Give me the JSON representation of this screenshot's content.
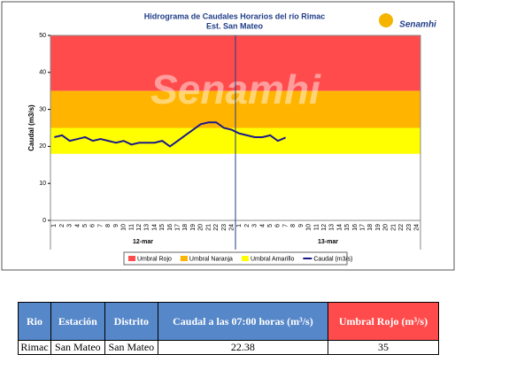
{
  "chart_data": {
    "type": "line",
    "title": "Hidrograma de Caudales Horarios del río Rimac",
    "subtitle": "Est. San Mateo",
    "logo": "Senamhi",
    "ylabel": "Caudal (m3/s)",
    "categories": [
      "1",
      "2",
      "3",
      "4",
      "5",
      "6",
      "7",
      "8",
      "9",
      "10",
      "11",
      "12",
      "13",
      "14",
      "15",
      "16",
      "17",
      "18",
      "19",
      "20",
      "21",
      "22",
      "23",
      "24",
      "1",
      "2",
      "3",
      "4",
      "5",
      "6",
      "7",
      "8",
      "9",
      "10",
      "11",
      "12",
      "13",
      "14",
      "15",
      "16",
      "17",
      "18",
      "19",
      "20",
      "21",
      "22",
      "23",
      "24"
    ],
    "days": [
      "12-mar",
      "13-mar"
    ],
    "ylim": [
      0,
      50
    ],
    "yticks": [
      0,
      10,
      20,
      30,
      40,
      50
    ],
    "thresholds": [
      {
        "name": "Umbral Rojo",
        "color": "#ff4b4b",
        "from": 35,
        "to": 50
      },
      {
        "name": "Umbral Naranja",
        "color": "#ffb400",
        "from": 25,
        "to": 35
      },
      {
        "name": "Umbral Amarillo",
        "color": "#ffff00",
        "from": 18,
        "to": 25
      }
    ],
    "series": [
      {
        "name": "Caudal (m3/s)",
        "color": "#1a1a8c",
        "values": [
          22.5,
          23,
          21.5,
          22,
          22.5,
          21.5,
          22,
          21.5,
          21,
          21.5,
          20.5,
          21,
          21,
          21,
          21.5,
          20,
          21.5,
          23,
          24.5,
          26,
          26.5,
          26.5,
          25,
          24.5,
          23.5,
          23,
          22.5,
          22.5,
          23,
          21.5,
          22.38,
          null,
          null,
          null,
          null,
          null,
          null,
          null,
          null,
          null,
          null,
          null,
          null,
          null,
          null,
          null,
          null,
          null
        ]
      }
    ]
  },
  "table": {
    "headers": [
      "Rio",
      "Estación",
      "Distrito",
      "Caudal a las 07:00 horas (m³/s)",
      "Umbral Rojo (m³/s)"
    ],
    "rows": [
      [
        "Rimac",
        "San Mateo",
        "San Mateo",
        22.38,
        35
      ]
    ]
  }
}
